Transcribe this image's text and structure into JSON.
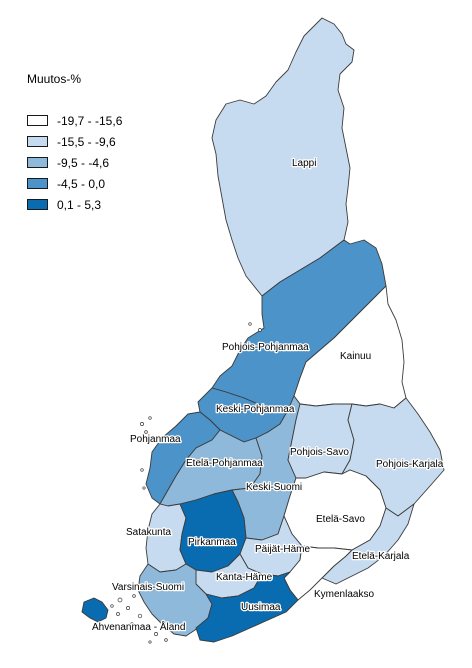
{
  "legend": {
    "title": "Muutos-%",
    "classes": [
      {
        "label": "-19,7 - -15,6",
        "color": "#ffffff"
      },
      {
        "label": "-15,5 - -9,6",
        "color": "#c6dbef"
      },
      {
        "label": "-9,5 - -4,6",
        "color": "#8fb9da"
      },
      {
        "label": "-4,5 - 0,0",
        "color": "#4b93c8"
      },
      {
        "label": "0,1 - 5,3",
        "color": "#0a6cb0"
      }
    ]
  },
  "regions": [
    {
      "id": "lappi",
      "name": "Lappi",
      "class": 1
    },
    {
      "id": "pohjois-pohjanmaa",
      "name": "Pohjois-Pohjanmaa",
      "class": 3
    },
    {
      "id": "kainuu",
      "name": "Kainuu",
      "class": 0
    },
    {
      "id": "keski-pohjanmaa",
      "name": "Keski-Pohjanmaa",
      "class": 3
    },
    {
      "id": "pohjanmaa",
      "name": "Pohjanmaa",
      "class": 3
    },
    {
      "id": "etela-pohjanmaa",
      "name": "Etelä-Pohjanmaa",
      "class": 2
    },
    {
      "id": "keski-suomi",
      "name": "Keski-Suomi",
      "class": 2
    },
    {
      "id": "pohjois-savo",
      "name": "Pohjois-Savo",
      "class": 1
    },
    {
      "id": "pohjois-karjala",
      "name": "Pohjois-Karjala",
      "class": 1
    },
    {
      "id": "etela-savo",
      "name": "Etelä-Savo",
      "class": 0
    },
    {
      "id": "satakunta",
      "name": "Satakunta",
      "class": 1
    },
    {
      "id": "pirkanmaa",
      "name": "Pirkanmaa",
      "class": 4
    },
    {
      "id": "paijat-hame",
      "name": "Päijät-Häme",
      "class": 1
    },
    {
      "id": "etela-karjala",
      "name": "Etelä-Karjala",
      "class": 1
    },
    {
      "id": "kanta-hame",
      "name": "Kanta-Häme",
      "class": 1
    },
    {
      "id": "kymenlaakso",
      "name": "Kymenlaakso",
      "class": 0
    },
    {
      "id": "varsinais-suomi",
      "name": "Varsinais-Suomi",
      "class": 2
    },
    {
      "id": "uusimaa",
      "name": "Uusimaa",
      "class": 4
    },
    {
      "id": "ahvenanmaa",
      "name": "Ahvenanmaa - Åland",
      "class": 4
    }
  ]
}
